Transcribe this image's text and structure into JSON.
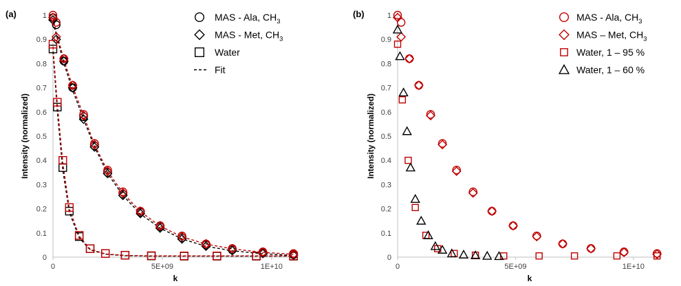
{
  "chart_data": [
    {
      "type": "scatter",
      "panel_label": "(a)",
      "xlabel": "k",
      "ylabel": "Intensity (normalized)",
      "xlim": [
        0,
        11200000000
      ],
      "ylim": [
        0,
        1
      ],
      "x_ticks": [
        0,
        5000000000,
        10000000000
      ],
      "x_tick_labels": [
        "0",
        "5E+09",
        "1E+10"
      ],
      "y_ticks": [
        0,
        0.1,
        0.2,
        0.3,
        0.4,
        0.5,
        0.6,
        0.7,
        0.8,
        0.9,
        1
      ],
      "y_tick_labels": [
        "0",
        "0.1",
        "0.2",
        "0.3",
        "0.4",
        "0.5",
        "0.6",
        "0.7",
        "0.8",
        "0.9",
        "1"
      ],
      "grid": false,
      "legend_position": "top-right",
      "legend": [
        {
          "marker": "circle",
          "label": "MAS - Ala, CH",
          "sub": "3"
        },
        {
          "marker": "diamond",
          "label": "MAS - Met, CH",
          "sub": "3"
        },
        {
          "marker": "square",
          "label": "Water",
          "sub": ""
        },
        {
          "marker": "dashed-line",
          "label": "Fit",
          "sub": ""
        }
      ],
      "series": [
        {
          "name": "MAS - Ala, CH3",
          "marker": "circle",
          "color": "#000000",
          "x": [
            0,
            150000000,
            500000000,
            900000000,
            1400000000,
            1900000000,
            2500000000,
            3200000000,
            4000000000,
            4900000000,
            5900000000,
            7000000000,
            8200000000,
            9600000000,
            11000000000
          ],
          "y": [
            0.99,
            0.96,
            0.81,
            0.7,
            0.58,
            0.46,
            0.35,
            0.26,
            0.185,
            0.125,
            0.08,
            0.05,
            0.03,
            0.018,
            0.01
          ]
        },
        {
          "name": "MAS - Met, CH3",
          "marker": "diamond",
          "color": "#000000",
          "x": [
            0,
            150000000,
            500000000,
            900000000,
            1400000000,
            1900000000,
            2500000000,
            3200000000,
            4000000000,
            4900000000,
            5900000000,
            7000000000,
            8200000000,
            9600000000,
            11000000000
          ],
          "y": [
            0.98,
            0.9,
            0.81,
            0.7,
            0.57,
            0.455,
            0.345,
            0.255,
            0.18,
            0.12,
            0.075,
            0.045,
            0.027,
            0.015,
            0.008
          ]
        },
        {
          "name": "Water",
          "marker": "square",
          "color": "#000000",
          "x": [
            0,
            200000000,
            450000000,
            750000000,
            1200000000,
            1700000000,
            2400000000,
            3300000000,
            4500000000,
            6000000000,
            7500000000,
            9300000000,
            11000000000
          ],
          "y": [
            0.86,
            0.62,
            0.37,
            0.19,
            0.085,
            0.035,
            0.015,
            0.008,
            0.005,
            0.004,
            0.004,
            0.004,
            0.004
          ]
        },
        {
          "name": "MAS - Ala, CH3",
          "marker": "circle",
          "color": "#c00000",
          "x": [
            0,
            150000000,
            500000000,
            900000000,
            1400000000,
            1900000000,
            2500000000,
            3200000000,
            4000000000,
            4900000000,
            5900000000,
            7000000000,
            8200000000,
            9600000000,
            11000000000
          ],
          "y": [
            1.0,
            0.97,
            0.82,
            0.71,
            0.59,
            0.47,
            0.36,
            0.27,
            0.19,
            0.13,
            0.088,
            0.055,
            0.036,
            0.022,
            0.015
          ]
        },
        {
          "name": "MAS - Met, CH3",
          "marker": "diamond",
          "color": "#c00000",
          "x": [
            0,
            150000000,
            500000000,
            900000000,
            1400000000,
            1900000000,
            2500000000,
            3200000000,
            4000000000,
            4900000000,
            5900000000,
            7000000000,
            8200000000,
            9600000000,
            11000000000
          ],
          "y": [
            0.99,
            0.91,
            0.82,
            0.71,
            0.585,
            0.465,
            0.355,
            0.265,
            0.19,
            0.13,
            0.085,
            0.055,
            0.035,
            0.02,
            0.012
          ]
        },
        {
          "name": "Water",
          "marker": "square",
          "color": "#c00000",
          "x": [
            0,
            200000000,
            450000000,
            750000000,
            1200000000,
            1700000000,
            2400000000,
            3300000000,
            4500000000,
            6000000000,
            7500000000,
            9300000000,
            11000000000
          ],
          "y": [
            0.88,
            0.64,
            0.4,
            0.205,
            0.09,
            0.035,
            0.015,
            0.008,
            0.006,
            0.005,
            0.005,
            0.005,
            0.005
          ]
        }
      ],
      "fits": [
        {
          "color": "#000000",
          "x": [
            0,
            150000000,
            500000000,
            900000000,
            1400000000,
            1900000000,
            2500000000,
            3200000000,
            4000000000,
            4900000000,
            5900000000,
            7000000000,
            8200000000,
            9600000000,
            11000000000
          ],
          "y": [
            0.97,
            0.92,
            0.8,
            0.69,
            0.57,
            0.455,
            0.345,
            0.255,
            0.178,
            0.12,
            0.075,
            0.045,
            0.026,
            0.014,
            0.007
          ]
        },
        {
          "color": "#c00000",
          "x": [
            0,
            150000000,
            500000000,
            900000000,
            1400000000,
            1900000000,
            2500000000,
            3200000000,
            4000000000,
            4900000000,
            5900000000,
            7000000000,
            8200000000,
            9600000000,
            11000000000
          ],
          "y": [
            0.99,
            0.93,
            0.815,
            0.705,
            0.585,
            0.465,
            0.355,
            0.265,
            0.188,
            0.128,
            0.084,
            0.054,
            0.034,
            0.02,
            0.012
          ]
        },
        {
          "color": "#000000",
          "x": [
            0,
            200000000,
            450000000,
            750000000,
            1200000000,
            1700000000,
            2400000000,
            3300000000,
            4500000000,
            6000000000,
            7500000000,
            9300000000,
            11000000000
          ],
          "y": [
            0.85,
            0.6,
            0.36,
            0.185,
            0.08,
            0.03,
            0.012,
            0.006,
            0.004,
            0.004,
            0.004,
            0.004,
            0.004
          ]
        },
        {
          "color": "#c00000",
          "x": [
            0,
            200000000,
            450000000,
            750000000,
            1200000000,
            1700000000,
            2400000000,
            3300000000,
            4500000000,
            6000000000,
            7500000000,
            9300000000,
            11000000000
          ],
          "y": [
            0.87,
            0.63,
            0.39,
            0.2,
            0.087,
            0.033,
            0.013,
            0.007,
            0.005,
            0.005,
            0.005,
            0.005,
            0.005
          ]
        }
      ]
    },
    {
      "type": "scatter",
      "panel_label": "(b)",
      "xlabel": "k",
      "ylabel": "Intensity (normalized)",
      "xlim": [
        0,
        11200000000
      ],
      "ylim": [
        0,
        1
      ],
      "x_ticks": [
        0,
        5000000000,
        10000000000
      ],
      "x_tick_labels": [
        "0",
        "5E+09",
        "1E+10"
      ],
      "y_ticks": [
        0,
        0.1,
        0.2,
        0.3,
        0.4,
        0.5,
        0.6,
        0.7,
        0.8,
        0.9,
        1
      ],
      "y_tick_labels": [
        "0",
        "0.1",
        "0.2",
        "0.3",
        "0.4",
        "0.5",
        "0.6",
        "0.7",
        "0.8",
        "0.9",
        "1"
      ],
      "grid": false,
      "legend_position": "top-right",
      "legend": [
        {
          "marker": "circle",
          "color": "#c00000",
          "label": "MAS - Ala, CH",
          "sub": "3"
        },
        {
          "marker": "diamond",
          "color": "#c00000",
          "label": "MAS – Met, CH",
          "sub": "3"
        },
        {
          "marker": "square-small",
          "color": "#c00000",
          "label": "Water, 1 – 95 %",
          "sub": ""
        },
        {
          "marker": "triangle",
          "color": "#000000",
          "label": "Water, 1 – 60 %",
          "sub": ""
        }
      ],
      "series": [
        {
          "name": "MAS - Ala, CH3",
          "marker": "circle",
          "color": "#c00000",
          "x": [
            0,
            150000000,
            500000000,
            900000000,
            1400000000,
            1900000000,
            2500000000,
            3200000000,
            4000000000,
            4900000000,
            5900000000,
            7000000000,
            8200000000,
            9600000000,
            11000000000
          ],
          "y": [
            1.0,
            0.97,
            0.82,
            0.71,
            0.59,
            0.47,
            0.36,
            0.27,
            0.19,
            0.13,
            0.088,
            0.055,
            0.036,
            0.022,
            0.015
          ]
        },
        {
          "name": "MAS – Met, CH3",
          "marker": "diamond",
          "color": "#c00000",
          "x": [
            0,
            150000000,
            500000000,
            900000000,
            1400000000,
            1900000000,
            2500000000,
            3200000000,
            4000000000,
            4900000000,
            5900000000,
            7000000000,
            8200000000,
            9600000000,
            11000000000
          ],
          "y": [
            0.99,
            0.91,
            0.82,
            0.71,
            0.585,
            0.465,
            0.355,
            0.265,
            0.19,
            0.13,
            0.085,
            0.055,
            0.035,
            0.02,
            0.012
          ]
        },
        {
          "name": "Water, 1 – 95 %",
          "marker": "square-small",
          "color": "#c00000",
          "x": [
            0,
            200000000,
            450000000,
            750000000,
            1200000000,
            1700000000,
            2400000000,
            3300000000,
            4500000000,
            6000000000,
            7500000000,
            9300000000,
            11000000000
          ],
          "y": [
            0.88,
            0.65,
            0.4,
            0.205,
            0.09,
            0.035,
            0.015,
            0.008,
            0.005,
            0.005,
            0.005,
            0.005,
            0.005
          ]
        },
        {
          "name": "Water, 1 – 60 %",
          "marker": "triangle",
          "color": "#000000",
          "x": [
            0,
            100000000,
            250000000,
            400000000,
            550000000,
            750000000,
            1000000000,
            1300000000,
            1600000000,
            1900000000,
            2300000000,
            2800000000,
            3300000000,
            3800000000,
            4300000000
          ],
          "y": [
            0.94,
            0.83,
            0.68,
            0.52,
            0.37,
            0.24,
            0.15,
            0.09,
            0.045,
            0.03,
            0.015,
            0.01,
            0.007,
            0.005,
            0.004
          ]
        }
      ]
    }
  ]
}
